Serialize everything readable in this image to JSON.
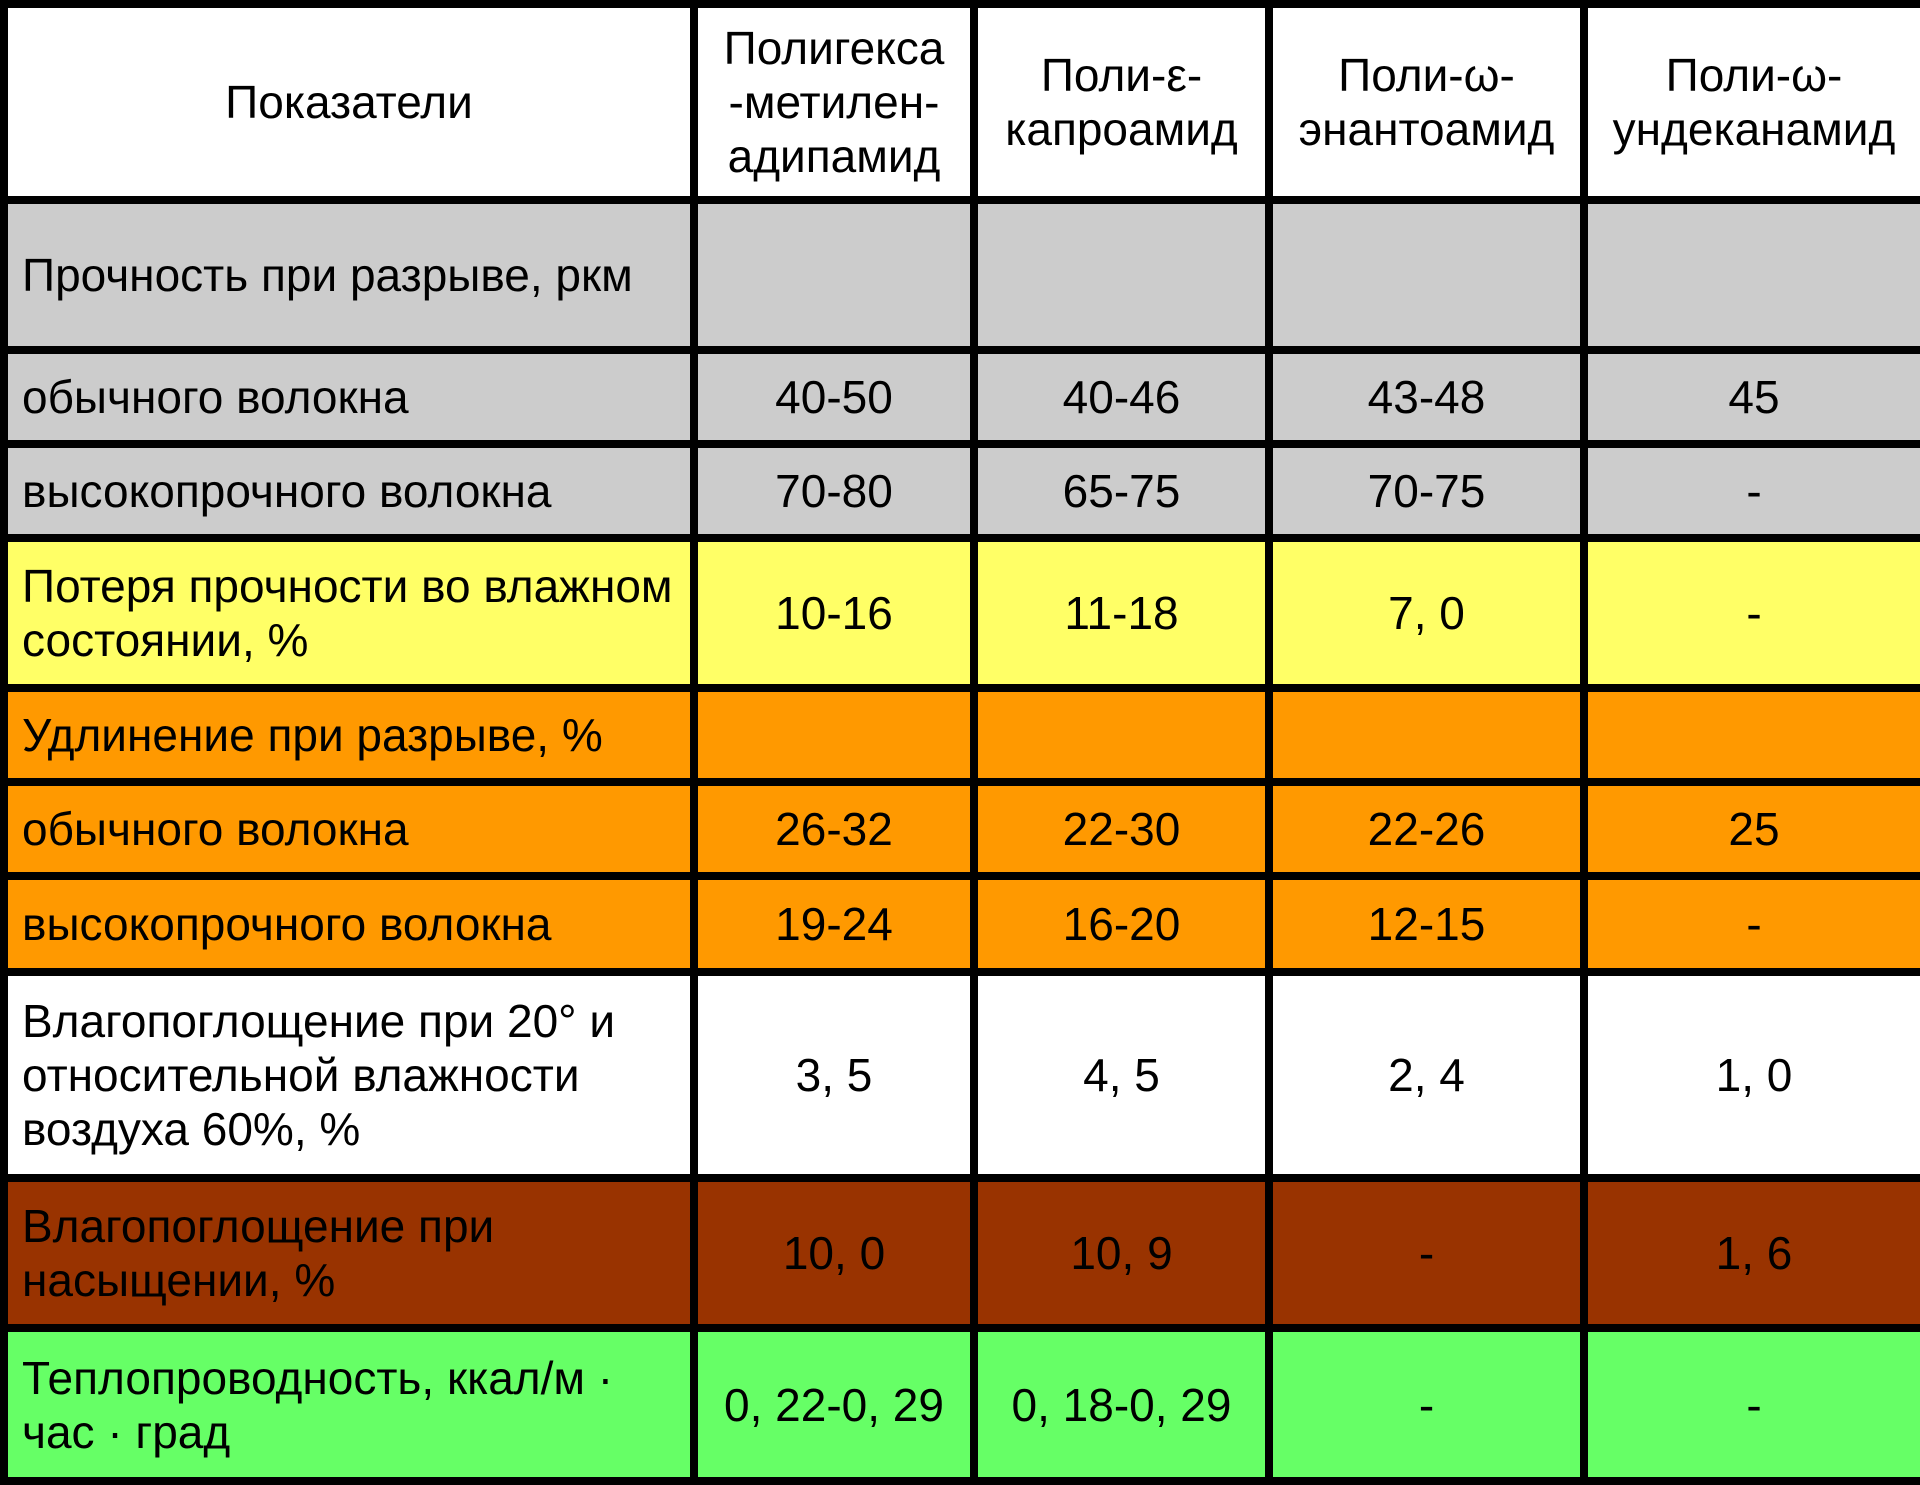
{
  "table": {
    "headers": [
      "Показатели",
      "Полигекса\n-метилен-\nадипамид",
      "Поли-ε-\nкапроамид",
      "Поли-ω-\nэнантоамид",
      "Поли-ω-\nундеканамид"
    ],
    "rows": [
      {
        "label": "Прочность при разрыве, ркм",
        "values": [
          "",
          "",
          "",
          ""
        ],
        "color": "#cccccc"
      },
      {
        "label": "обычного волокна",
        "values": [
          "40-50",
          "40-46",
          "43-48",
          "45"
        ],
        "color": "#cccccc"
      },
      {
        "label": "высокопрочного волокна",
        "values": [
          "70-80",
          "65-75",
          "70-75",
          "-"
        ],
        "color": "#cccccc"
      },
      {
        "label": "Потеря прочности во влажном состоянии, %",
        "values": [
          "10-16",
          "11-18",
          "7, 0",
          "-"
        ],
        "color": "#ffff66"
      },
      {
        "label": "Удлинение при разрыве, %",
        "values": [
          "",
          "",
          "",
          ""
        ],
        "color": "#ff9900"
      },
      {
        "label": "обычного волокна",
        "values": [
          "26-32",
          "22-30",
          "22-26",
          "25"
        ],
        "color": "#ff9900"
      },
      {
        "label": "высокопрочного волокна",
        "values": [
          "19-24",
          "16-20",
          "12-15",
          "-"
        ],
        "color": "#ff9900"
      },
      {
        "label": "Влагопоглощение при 20° и относительной влажности воздуха 60%, %",
        "values": [
          "3, 5",
          "4, 5",
          "2, 4",
          "1, 0"
        ],
        "color": "#ffffff"
      },
      {
        "label": "Влагопоглощение при насыщении, %",
        "values": [
          "10, 0",
          "10, 9",
          "-",
          "1, 6"
        ],
        "color": "#993300"
      },
      {
        "label": "Теплопроводность, ккал/м · час · град",
        "values": [
          "0, 22-0, 29",
          "0, 18-0, 29",
          "-",
          "-"
        ],
        "color": "#66ff66"
      }
    ]
  }
}
